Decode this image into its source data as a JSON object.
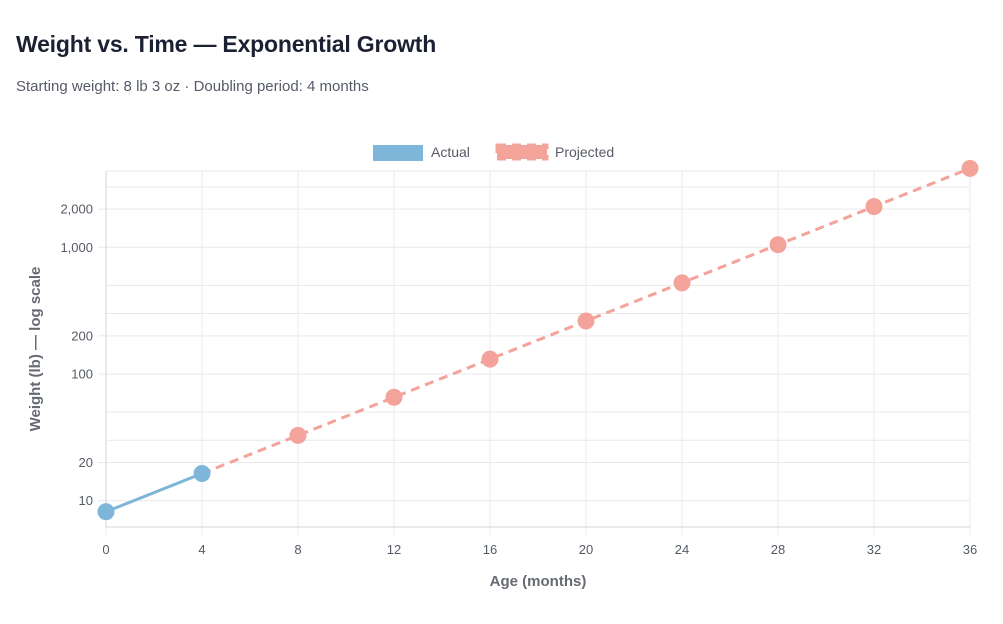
{
  "header": {
    "title": "Weight vs. Time — Exponential Growth",
    "subtitle": "Starting weight: 8 lb 3 oz · Doubling period: 4 months"
  },
  "chart_data": {
    "type": "line",
    "xlabel": "Age (months)",
    "ylabel": "Weight (lb) — log scale",
    "xlim": [
      0,
      36
    ],
    "ylim": [
      6.2,
      4000
    ],
    "yscale": "log",
    "x_ticks": [
      0,
      4,
      8,
      12,
      16,
      20,
      24,
      28,
      32,
      36
    ],
    "x_tick_labels": [
      "0",
      "4",
      "8",
      "12",
      "16",
      "20",
      "24",
      "28",
      "32",
      "36"
    ],
    "y_ticks": [
      10,
      20,
      100,
      200,
      1000,
      2000
    ],
    "y_tick_labels": [
      "10",
      "20",
      "100",
      "200",
      "1,000",
      "2,000"
    ],
    "y_grid": [
      10,
      20,
      30,
      50,
      100,
      200,
      300,
      500,
      1000,
      2000,
      3000
    ],
    "legend_position": "top-center",
    "series": [
      {
        "name": "Actual",
        "color": "#7eb6da",
        "style": "solid",
        "x": [
          0,
          4
        ],
        "y": [
          8.19,
          16.38
        ]
      },
      {
        "name": "Projected",
        "color": "#f4a39a",
        "style": "dashed",
        "x": [
          4,
          8,
          12,
          16,
          20,
          24,
          28,
          32,
          36
        ],
        "y": [
          16.38,
          32.75,
          65.5,
          131,
          262,
          524,
          1048,
          2096,
          4192
        ]
      }
    ],
    "marker_points": [
      {
        "series": "Actual",
        "x": 0,
        "y": 8.19
      },
      {
        "series": "Actual",
        "x": 4,
        "y": 16.38
      },
      {
        "series": "Projected",
        "x": 8,
        "y": 32.75
      },
      {
        "series": "Projected",
        "x": 12,
        "y": 65.5
      },
      {
        "series": "Projected",
        "x": 16,
        "y": 131
      },
      {
        "series": "Projected",
        "x": 20,
        "y": 262
      },
      {
        "series": "Projected",
        "x": 24,
        "y": 524
      },
      {
        "series": "Projected",
        "x": 28,
        "y": 1048
      },
      {
        "series": "Projected",
        "x": 32,
        "y": 2096
      },
      {
        "series": "Projected",
        "x": 36,
        "y": 4192
      }
    ]
  }
}
